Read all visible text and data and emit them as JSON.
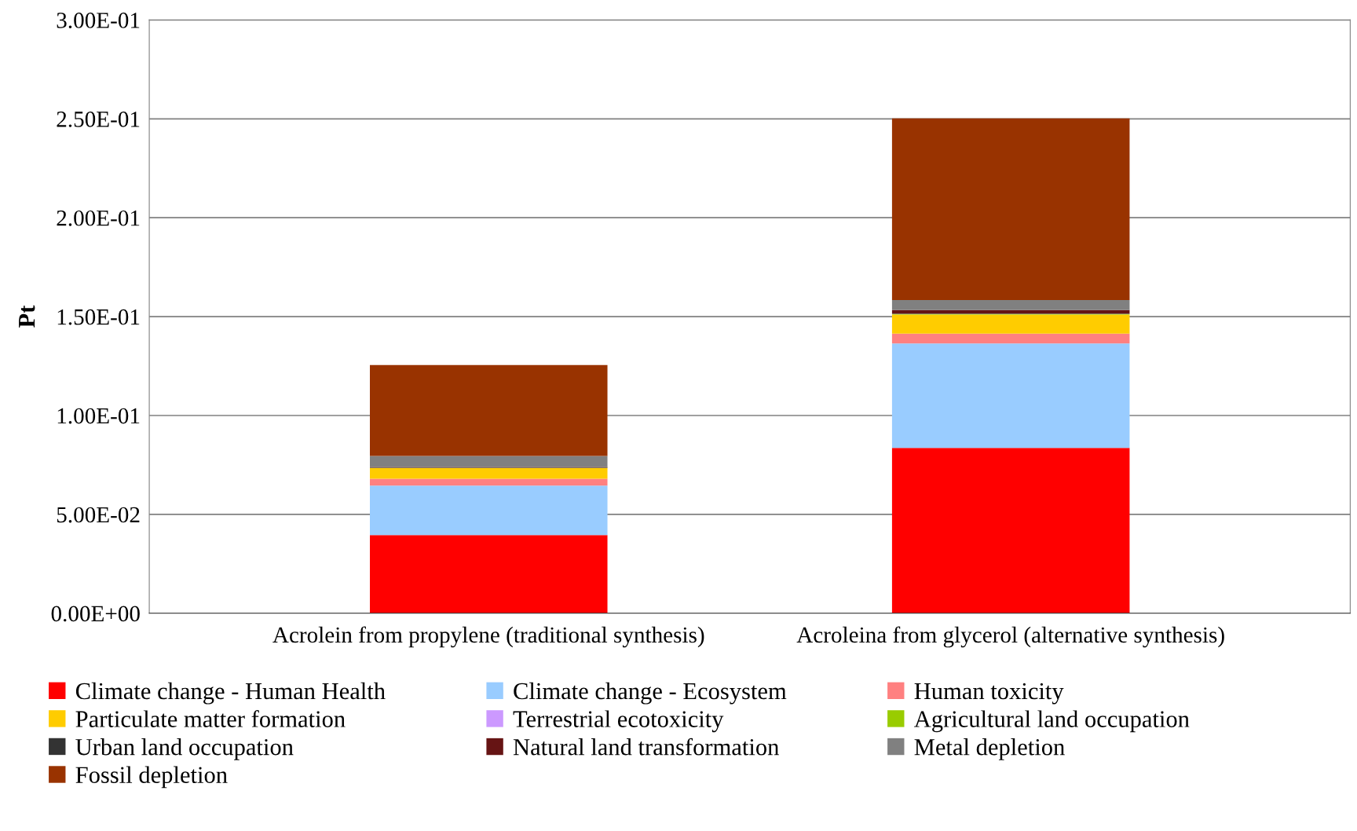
{
  "chart_data": {
    "type": "bar",
    "stacked": true,
    "ylabel": "Pt",
    "categories": [
      "Acrolein from propylene (traditional synthesis)",
      "Acroleina from glycerol (alternative synthesis)"
    ],
    "series": [
      {
        "name": "Climate change - Human Health",
        "color": "#ff0000",
        "values": [
          0.0395,
          0.0836
        ]
      },
      {
        "name": "Climate change - Ecosystem",
        "color": "#99ccff",
        "values": [
          0.0251,
          0.0528
        ]
      },
      {
        "name": "Human toxicity",
        "color": "#ff8080",
        "values": [
          0.0034,
          0.005
        ]
      },
      {
        "name": "Particulate matter formation",
        "color": "#ffcc00",
        "values": [
          0.0054,
          0.0096
        ]
      },
      {
        "name": "Terrestrial ecotoxicity",
        "color": "#cc99ff",
        "values": [
          0.0,
          0.0
        ]
      },
      {
        "name": "Agricultural land occupation",
        "color": "#99cc00",
        "values": [
          0.0001,
          0.0003
        ]
      },
      {
        "name": "Urban land occupation",
        "color": "#333333",
        "values": [
          0.0002,
          0.0002
        ]
      },
      {
        "name": "Natural land transformation",
        "color": "#661414",
        "values": [
          0.0003,
          0.0018
        ]
      },
      {
        "name": "Metal depletion",
        "color": "#808080",
        "values": [
          0.0055,
          0.0051
        ]
      },
      {
        "name": "Fossil depletion",
        "color": "#993300",
        "values": [
          0.046,
          0.0918
        ]
      }
    ],
    "ylim": [
      0,
      0.3
    ],
    "yticks": [
      {
        "value": 0,
        "label": "0.00E+00"
      },
      {
        "value": 0.05,
        "label": "5.00E-02"
      },
      {
        "value": 0.1,
        "label": "1.00E-01"
      },
      {
        "value": 0.15,
        "label": "1.50E-01"
      },
      {
        "value": 0.2,
        "label": "2.00E-01"
      },
      {
        "value": 0.25,
        "label": "2.50E-01"
      },
      {
        "value": 0.3,
        "label": "3.00E-01"
      }
    ],
    "grid": "y",
    "legend": "bottom"
  }
}
